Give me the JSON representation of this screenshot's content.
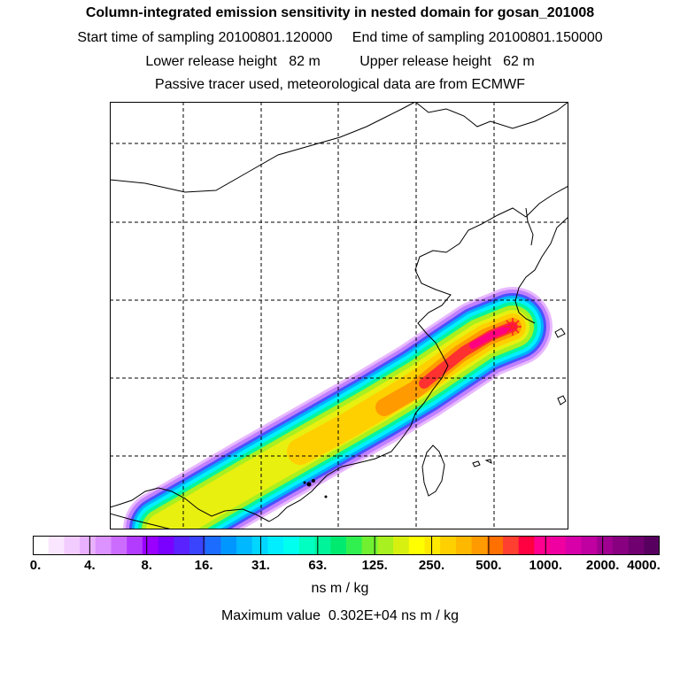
{
  "header": {
    "title": "Column-integrated emission sensitivity in nested domain for gosan_201008",
    "line2": "Start time of sampling 20100801.120000     End time of sampling 20100801.150000",
    "line3": "Lower release height   82 m          Upper release height   62 m",
    "line4": "Passive tracer used, meteorological data are from ECMWF"
  },
  "map": {
    "receptor_marker": "star-icon",
    "colors": {
      "background": "#ffffff",
      "coastline": "#000000",
      "grid": "#000000"
    }
  },
  "colorbar": {
    "tick_labels": [
      "0.",
      "4.",
      "8.",
      "16.",
      "31.",
      "63.",
      "125.",
      "250.",
      "500.",
      "1000.",
      "2000.",
      "4000."
    ],
    "colors": [
      "#ffffff",
      "#fbe6ff",
      "#f3ccff",
      "#e9b0ff",
      "#dc92ff",
      "#cc6cff",
      "#b33bff",
      "#9a00ff",
      "#7a00ff",
      "#5a22ff",
      "#3a44ff",
      "#1c6cff",
      "#0096ff",
      "#00b8ff",
      "#00d6ff",
      "#00eeff",
      "#00ffee",
      "#00ffc0",
      "#00f59a",
      "#00ea70",
      "#30f050",
      "#70f030",
      "#a8f020",
      "#d8f010",
      "#ffff00",
      "#ffe800",
      "#ffd000",
      "#ffb800",
      "#ff9a00",
      "#ff7000",
      "#ff4030",
      "#ff0040",
      "#ff0090",
      "#f000a0",
      "#d800a8",
      "#c000a0",
      "#a00090",
      "#880080",
      "#700070",
      "#580060"
    ],
    "unit": "ns m / kg",
    "max_label": "Maximum value  0.302E+04 ns m / kg"
  }
}
